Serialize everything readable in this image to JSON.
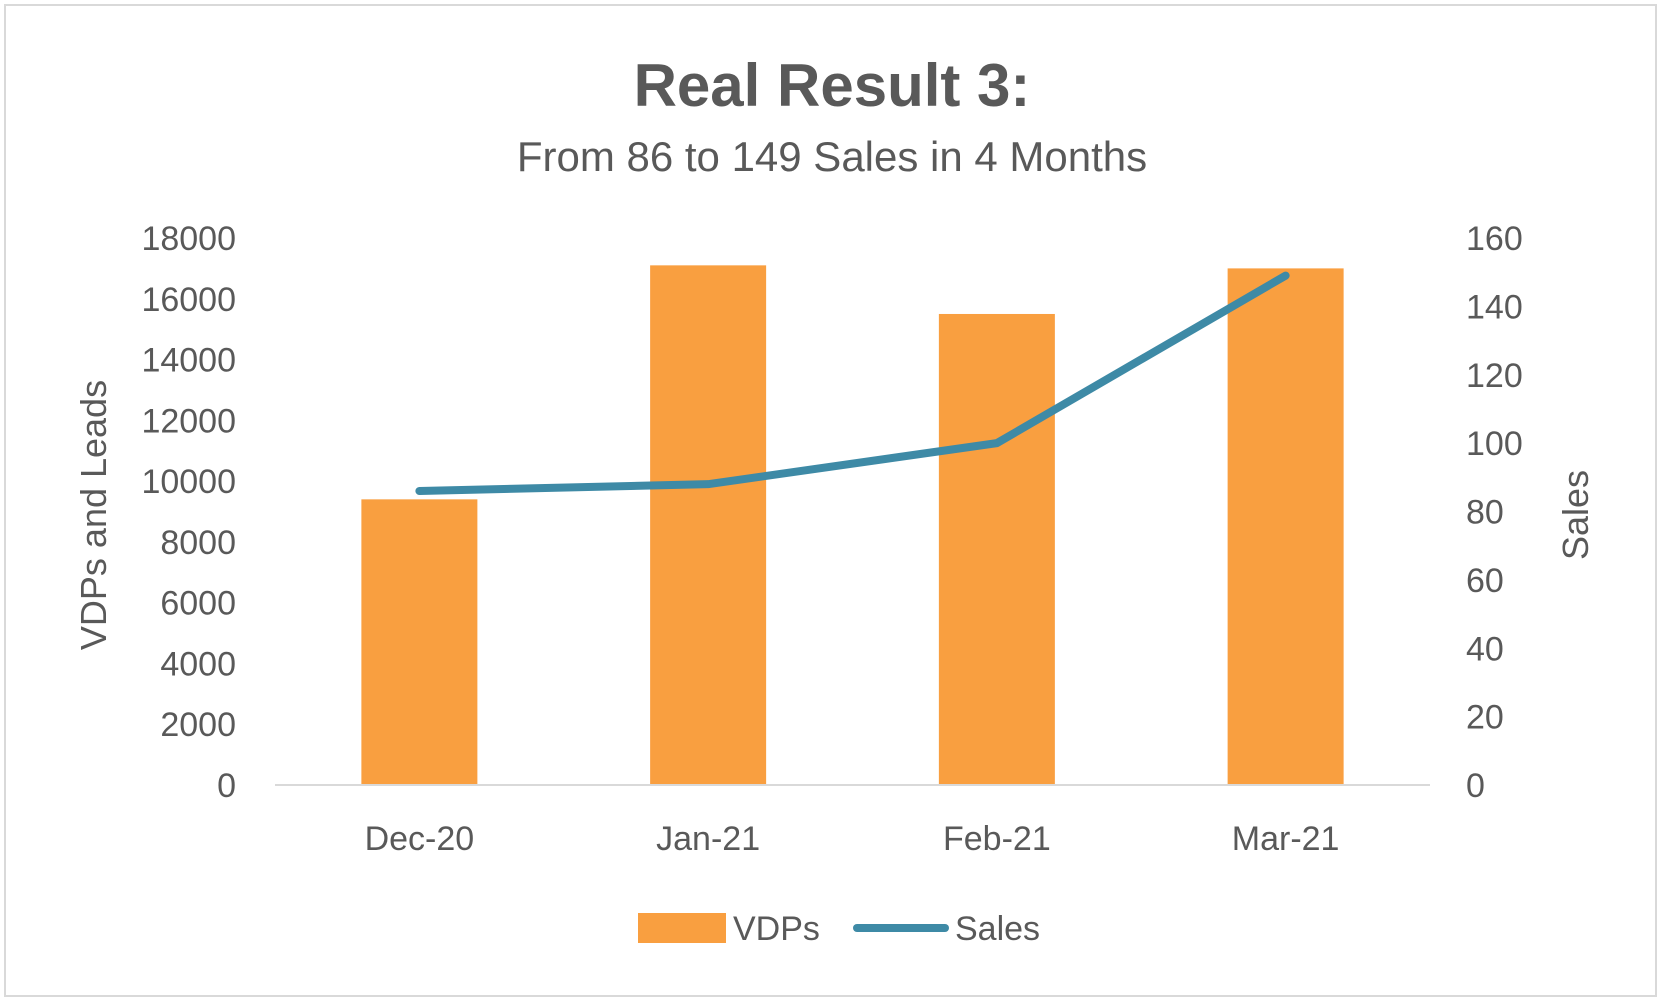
{
  "chart_data": {
    "type": "bar",
    "title": "Real Result 3:",
    "subtitle": "From 86 to 149 Sales in 4 Months",
    "categories": [
      "Dec-20",
      "Jan-21",
      "Feb-21",
      "Mar-21"
    ],
    "series": [
      {
        "name": "VDPs",
        "type": "bar",
        "axis": "left",
        "color": "#f99f40",
        "values": [
          9400,
          17100,
          15500,
          17000
        ]
      },
      {
        "name": "Sales",
        "type": "line",
        "axis": "right",
        "color": "#3e8aa6",
        "values": [
          86,
          88,
          100,
          149
        ]
      }
    ],
    "y_left": {
      "label": "VDPs and Leads",
      "ylim": [
        0,
        18000
      ],
      "ticks": [
        "0",
        "2000",
        "4000",
        "6000",
        "8000",
        "10000",
        "12000",
        "14000",
        "16000",
        "18000"
      ]
    },
    "y_right": {
      "label": "Sales",
      "ylim": [
        0,
        160
      ],
      "ticks": [
        "0",
        "20",
        "40",
        "60",
        "80",
        "100",
        "120",
        "140",
        "160"
      ]
    },
    "grid": false,
    "legend_position": "bottom"
  }
}
